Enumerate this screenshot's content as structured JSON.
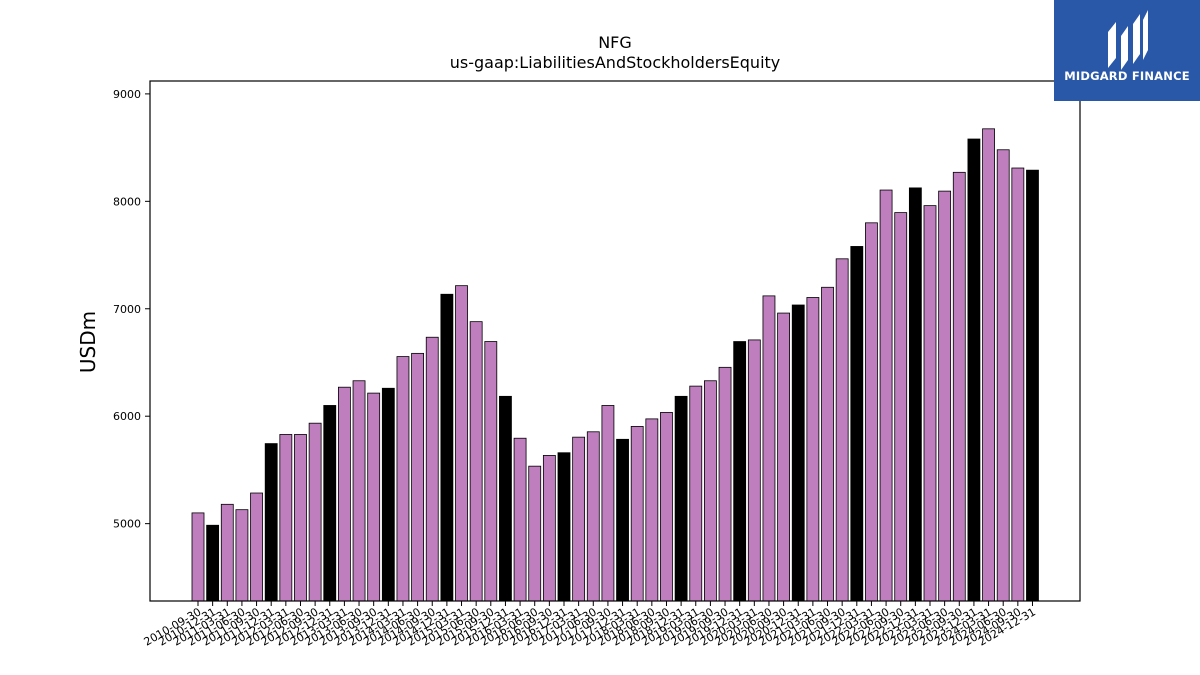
{
  "chart_data": {
    "type": "bar",
    "title": "NFG",
    "subtitle": "us-gaap:LiabilitiesAndStockholdersEquity",
    "ylabel": "USDm",
    "xlabel": "",
    "ylim": [
      4280,
      9120
    ],
    "yticks": [
      5000,
      6000,
      7000,
      8000,
      9000
    ],
    "grid": false,
    "colors": {
      "quarter": "#bf7fbf",
      "fiscal_year_end": "#000000",
      "edge": "#000000"
    },
    "categories": [
      "2010-09-30",
      "2010-12-31",
      "2011-03-31",
      "2011-06-30",
      "2011-09-30",
      "2011-12-31",
      "2012-03-31",
      "2012-06-30",
      "2012-09-30",
      "2012-12-31",
      "2013-03-31",
      "2013-06-30",
      "2013-09-30",
      "2013-12-31",
      "2014-03-31",
      "2014-06-30",
      "2014-09-30",
      "2014-12-31",
      "2015-03-31",
      "2015-06-30",
      "2015-09-30",
      "2015-12-31",
      "2016-03-31",
      "2016-06-30",
      "2016-09-30",
      "2016-12-31",
      "2017-03-31",
      "2017-06-30",
      "2017-09-30",
      "2017-12-31",
      "2018-03-31",
      "2018-06-30",
      "2018-09-30",
      "2018-12-31",
      "2019-03-31",
      "2019-06-30",
      "2019-09-30",
      "2019-12-31",
      "2020-03-31",
      "2020-06-30",
      "2020-09-30",
      "2020-12-31",
      "2021-03-31",
      "2021-06-30",
      "2021-09-30",
      "2021-12-31",
      "2022-03-31",
      "2022-06-30",
      "2022-09-30",
      "2022-12-31",
      "2023-03-31",
      "2023-06-30",
      "2023-09-30",
      "2023-12-31",
      "2024-03-31",
      "2024-06-30",
      "2024-09-30",
      "2024-12-31"
    ],
    "values": [
      5100,
      4985,
      5180,
      5130,
      5285,
      5745,
      5830,
      5830,
      5935,
      6100,
      6270,
      6330,
      6215,
      6260,
      6555,
      6585,
      6735,
      7135,
      7215,
      6880,
      6695,
      6185,
      5795,
      5535,
      5635,
      5660,
      5805,
      5855,
      6100,
      5785,
      5905,
      5975,
      6035,
      6185,
      6280,
      6330,
      6455,
      6695,
      6710,
      7120,
      6960,
      7035,
      7105,
      7200,
      7465,
      7580,
      7800,
      8105,
      7895,
      8125,
      7960,
      8095,
      8270,
      8580,
      8675,
      8480,
      8310,
      8290
    ],
    "fiscal_year_end": [
      false,
      true,
      false,
      false,
      false,
      true,
      false,
      false,
      false,
      true,
      false,
      false,
      false,
      true,
      false,
      false,
      false,
      true,
      false,
      false,
      false,
      true,
      false,
      false,
      false,
      true,
      false,
      false,
      false,
      true,
      false,
      false,
      false,
      true,
      false,
      false,
      false,
      true,
      false,
      false,
      false,
      true,
      false,
      false,
      false,
      true,
      false,
      false,
      false,
      true,
      false,
      false,
      false,
      true,
      false,
      false,
      false,
      true
    ]
  },
  "logo": {
    "text": "MIDGARD FINANCE"
  }
}
